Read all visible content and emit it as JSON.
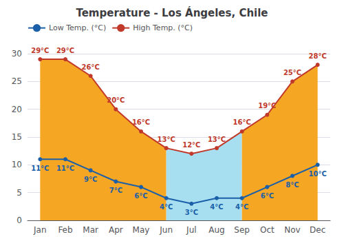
{
  "chart_data": {
    "type": "line",
    "title": "Temperature - Los Ángeles, Chile",
    "categories": [
      "Jan",
      "Feb",
      "Mar",
      "Apr",
      "May",
      "Jun",
      "Jul",
      "Aug",
      "Sep",
      "Oct",
      "Nov",
      "Dec"
    ],
    "series": [
      {
        "name": "Low Temp. (°C)",
        "color": "#1a5fa8",
        "marker": "circle",
        "values": [
          11,
          11,
          9,
          7,
          6,
          4,
          3,
          4,
          4,
          6,
          8,
          10
        ],
        "value_labels": [
          "11°C",
          "11°C",
          "9°C",
          "7°C",
          "6°C",
          "4°C",
          "3°C",
          "4°C",
          "4°C",
          "6°C",
          "8°C",
          "10°C"
        ]
      },
      {
        "name": "High Temp. (°C)",
        "color": "#c0392b",
        "marker": "circle",
        "values": [
          29,
          29,
          26,
          20,
          16,
          13,
          12,
          13,
          16,
          19,
          25,
          28
        ],
        "value_labels": [
          "29°C",
          "29°C",
          "26°C",
          "20°C",
          "16°C",
          "13°C",
          "12°C",
          "13°C",
          "16°C",
          "19°C",
          "25°C",
          "28°C"
        ],
        "colors": [
          "#f5a623",
          "#f5a623",
          "#f5a623",
          "#f5a623",
          "#f5a623",
          "#a8dff0",
          "#a8dff0",
          "#a8dff0",
          "#f5a623",
          "#f5a623",
          "#f5a623",
          "#f5a623"
        ]
      }
    ],
    "ylim": [
      0,
      30
    ],
    "yticks": [
      0,
      5,
      10,
      15,
      20,
      25,
      30
    ],
    "grid": true,
    "legend": "upper left",
    "data_labels": true
  }
}
